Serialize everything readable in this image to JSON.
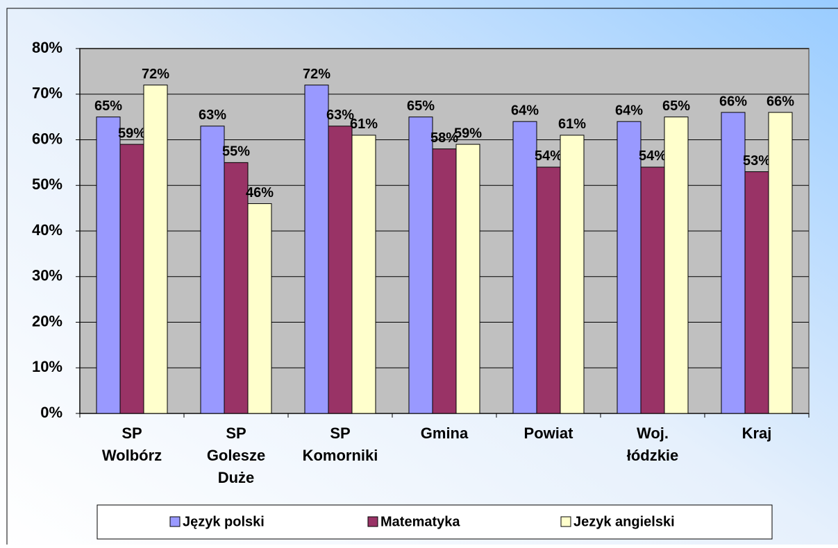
{
  "chart_data": {
    "type": "bar",
    "categories": [
      [
        "SP",
        "Wolbórz"
      ],
      [
        "SP",
        "Golesze",
        "Duże"
      ],
      [
        "SP",
        "Komorniki"
      ],
      [
        "Gmina"
      ],
      [
        "Powiat"
      ],
      [
        "Woj.",
        "łódzkie"
      ],
      [
        "Kraj"
      ]
    ],
    "series": [
      {
        "name": "Język polski",
        "color": "#9999ff",
        "values": [
          65,
          63,
          72,
          65,
          64,
          64,
          66
        ],
        "value_labels": [
          "65%",
          "63%",
          "72%",
          "65%",
          "64%",
          "64%",
          "66%"
        ]
      },
      {
        "name": "Matematyka",
        "color": "#993366",
        "values": [
          59,
          55,
          63,
          58,
          54,
          54,
          53
        ],
        "value_labels": [
          "59%",
          "55%",
          "63%",
          "58%",
          "54%",
          "54%",
          "53%"
        ]
      },
      {
        "name": "Jezyk angielski",
        "color": "#ffffcc",
        "values": [
          72,
          46,
          61,
          59,
          61,
          65,
          66
        ],
        "value_labels": [
          "72%",
          "46%",
          "61%",
          "59%",
          "61%",
          "65%",
          "66%"
        ]
      }
    ],
    "ylim": [
      0,
      80
    ],
    "yticks": [
      {
        "value": 0,
        "label": "0%"
      },
      {
        "value": 10,
        "label": "10%"
      },
      {
        "value": 20,
        "label": "20%"
      },
      {
        "value": 30,
        "label": "30%"
      },
      {
        "value": 40,
        "label": "40%"
      },
      {
        "value": 50,
        "label": "50%"
      },
      {
        "value": 60,
        "label": "60%"
      },
      {
        "value": 70,
        "label": "70%"
      },
      {
        "value": 80,
        "label": "80%"
      }
    ],
    "grid": true,
    "plot_background": "#c0c0c0",
    "legend": "bottom"
  }
}
